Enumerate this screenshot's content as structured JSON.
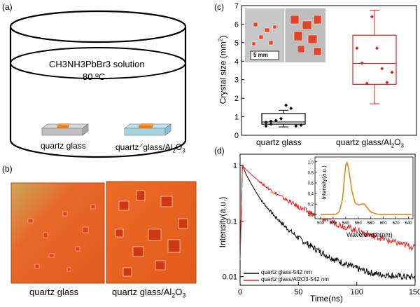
{
  "panels": {
    "a": {
      "tag": "(a)",
      "solution_formula": "CH3NH3PbBr3",
      "solution_suffix": "solution",
      "temperature": "80 ºC",
      "sample_left": "quartz glass",
      "sample_right_main": "quartz",
      "sample_right_rest": "glass/Al",
      "sample_right_sub": "2",
      "sample_right_end": "O",
      "sample_right_sub2": "3"
    },
    "b": {
      "tag": "(b)",
      "caption_left": "quartz glass",
      "caption_right_main": "quartz glass/Al",
      "caption_right_sub": "2",
      "caption_right_end": "O",
      "caption_right_sub2": "3"
    },
    "c": {
      "tag": "(c)",
      "scale_bar": "5 mm",
      "ylabel": "Crystal size (mm",
      "ylabel_sup": "2",
      "ylabel_end": ")",
      "yticks": [
        "0",
        "1",
        "2",
        "3",
        "4",
        "5",
        "6",
        "7"
      ],
      "xcat_left": "quartz glass",
      "xcat_right_main": "quartz glass/Al",
      "xcat_right_sub": "2",
      "xcat_right_end": "O",
      "xcat_right_sub2": "3"
    },
    "d": {
      "tag": "(d)",
      "ylabel": "Intensity(a.u.)",
      "xlabel": "Time(ns)",
      "yticks": [
        "0.01",
        "0.1",
        "1"
      ],
      "xticks": [
        "0",
        "50",
        "100",
        "150"
      ],
      "legend": [
        "quartz glass-542 nm",
        "quartz glass/Al2O3-542 nm"
      ],
      "colors": {
        "series1": "#000000",
        "series2": "#e8201f",
        "inset": "#e08a1e"
      },
      "inset": {
        "ylabel": "Intensity(a.u.)",
        "xlabel": "Wavelength(nm)",
        "yticks": [
          "0.0",
          "0.2",
          "0.4",
          "0.6",
          "0.8",
          "1.0"
        ],
        "xticks": [
          "500",
          "520",
          "540",
          "560",
          "580",
          "600",
          "620",
          "640"
        ]
      }
    }
  },
  "chart_data": [
    {
      "type": "box",
      "title": "",
      "ylabel": "Crystal size (mm2)",
      "ylim": [
        0,
        7
      ],
      "categories": [
        "quartz glass",
        "quartz glass/Al2O3"
      ],
      "boxes": [
        {
          "name": "quartz glass",
          "min": 0.45,
          "q1": 0.6,
          "median": 0.72,
          "q3": 1.18,
          "max": 1.35,
          "mean": 0.82,
          "points": [
            0.7,
            0.75,
            0.8,
            0.9,
            1.62,
            1.45,
            0.5,
            0.55,
            0.5,
            0.6
          ]
        },
        {
          "name": "quartz glass/Al2O3",
          "min": 1.7,
          "q1": 2.75,
          "median": 3.88,
          "q3": 5.4,
          "max": 6.75,
          "mean": 3.88,
          "points": [
            4.7,
            3.9,
            2.8,
            6.4,
            4.7,
            3.6,
            2.85,
            3.4
          ]
        }
      ]
    },
    {
      "type": "line",
      "scale": "log-y",
      "xlabel": "Time(ns)",
      "ylabel": "Intensity(a.u.)",
      "xlim": [
        0,
        150
      ],
      "ylim": [
        0.007,
        1.6
      ],
      "series": [
        {
          "name": "quartz glass-542 nm",
          "color": "#000000",
          "x": [
            0,
            2,
            3,
            5,
            10,
            15,
            20,
            30,
            40,
            50,
            60,
            70,
            80,
            90,
            100,
            110,
            120,
            130,
            140,
            150
          ],
          "y": [
            0.02,
            1.0,
            0.92,
            0.7,
            0.45,
            0.3,
            0.21,
            0.12,
            0.075,
            0.05,
            0.036,
            0.027,
            0.021,
            0.017,
            0.014,
            0.012,
            0.011,
            0.0105,
            0.01,
            0.0098
          ]
        },
        {
          "name": "quartz glass/Al2O3-542 nm",
          "color": "#e8201f",
          "x": [
            0,
            2,
            3,
            5,
            10,
            15,
            20,
            30,
            40,
            50,
            60,
            70,
            80,
            90,
            100,
            110,
            120,
            130,
            140,
            150
          ],
          "y": [
            0.02,
            1.0,
            0.95,
            0.85,
            0.68,
            0.55,
            0.45,
            0.32,
            0.24,
            0.18,
            0.14,
            0.115,
            0.095,
            0.08,
            0.068,
            0.058,
            0.05,
            0.043,
            0.038,
            0.033
          ]
        }
      ]
    },
    {
      "type": "line",
      "xlabel": "Wavelength(nm)",
      "ylabel": "Intensity(a.u.)",
      "xlim": [
        500,
        645
      ],
      "ylim": [
        -0.05,
        1.05
      ],
      "series": [
        {
          "name": "PL",
          "color": "#e08a1e",
          "x": [
            500,
            520,
            525,
            530,
            535,
            538,
            540,
            542,
            545,
            550,
            555,
            560,
            565,
            570,
            575,
            580,
            590,
            600,
            620,
            645
          ],
          "y": [
            0.0,
            0.0,
            0.01,
            0.06,
            0.3,
            0.7,
            0.93,
            0.99,
            0.85,
            0.45,
            0.22,
            0.18,
            0.2,
            0.2,
            0.12,
            0.05,
            0.01,
            0.0,
            0.0,
            0.0
          ]
        }
      ]
    }
  ]
}
